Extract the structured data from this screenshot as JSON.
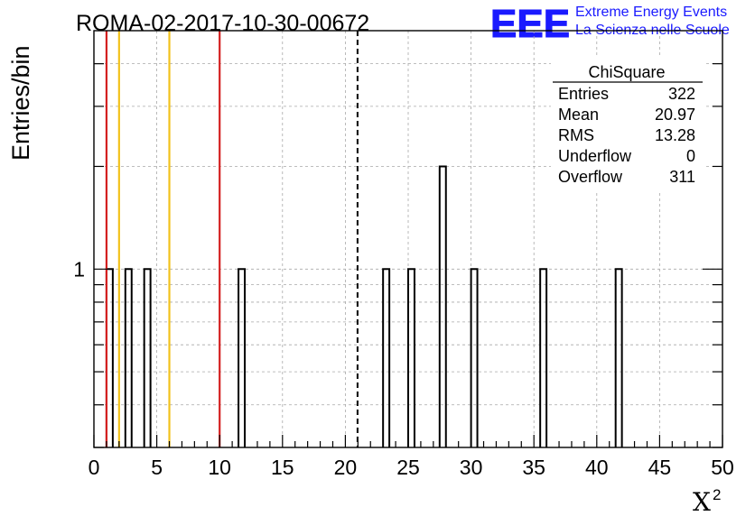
{
  "chart_data": {
    "type": "bar",
    "title": "ROMA-02-2017-10-30-00672",
    "xlabel": "X",
    "xlabel_superscript": "2",
    "ylabel": "Entries/bin",
    "xlim": [
      0,
      50
    ],
    "ylim": [
      0.3,
      5
    ],
    "y_scale": "log",
    "bin_width": 0.5,
    "x_ticks": [
      "0",
      "5",
      "10",
      "15",
      "20",
      "25",
      "30",
      "35",
      "40",
      "45",
      "50"
    ],
    "y_tick_labels": [
      {
        "value": 1,
        "label": "1"
      }
    ],
    "grid": true,
    "bins": [
      {
        "x": 1.0,
        "value": 1
      },
      {
        "x": 2.5,
        "value": 1
      },
      {
        "x": 4.0,
        "value": 1
      },
      {
        "x": 11.5,
        "value": 1
      },
      {
        "x": 23.0,
        "value": 1
      },
      {
        "x": 25.0,
        "value": 1
      },
      {
        "x": 27.5,
        "value": 2
      },
      {
        "x": 30.0,
        "value": 1
      },
      {
        "x": 35.5,
        "value": 1
      },
      {
        "x": 41.5,
        "value": 1
      }
    ],
    "vertical_lines": [
      {
        "x": 1.0,
        "color": "#d42020",
        "style": "solid"
      },
      {
        "x": 2.0,
        "color": "#f2c21c",
        "style": "solid"
      },
      {
        "x": 6.0,
        "color": "#f2c21c",
        "style": "solid"
      },
      {
        "x": 10.0,
        "color": "#d42020",
        "style": "solid"
      },
      {
        "x": 20.97,
        "color": "#000000",
        "style": "dashed"
      }
    ],
    "stats_box": {
      "title": "ChiSquare",
      "rows": [
        {
          "label": "Entries",
          "value": "322"
        },
        {
          "label": "Mean",
          "value": "20.97"
        },
        {
          "label": "RMS",
          "value": "13.28"
        },
        {
          "label": "Underflow",
          "value": "0"
        },
        {
          "label": "Overflow",
          "value": "311"
        }
      ]
    }
  },
  "logo": {
    "text": "EEE",
    "line1": "Extreme Energy Events",
    "line2": "La Scienza nelle Scuole",
    "color": "#1a1aff"
  }
}
